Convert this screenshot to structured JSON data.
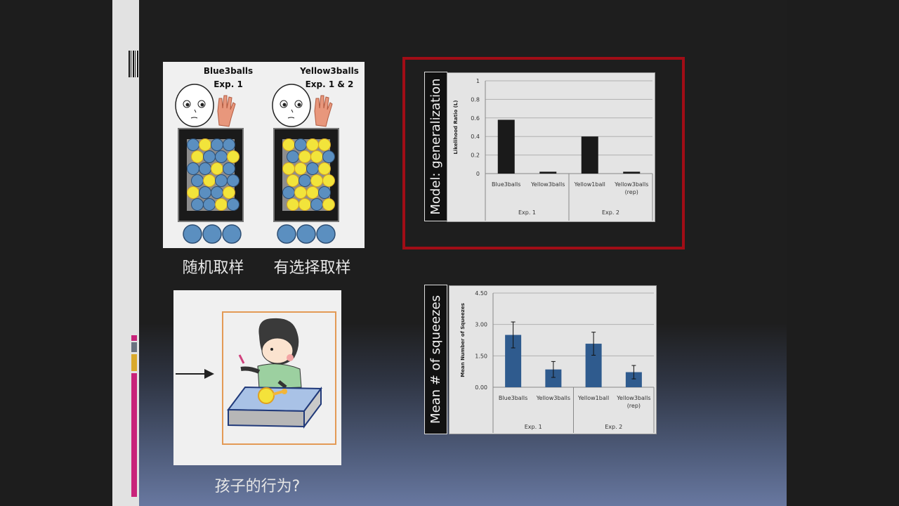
{
  "top_left": {
    "label1_line1": "Blue3balls",
    "label1_line2": "Exp. 1",
    "label2_line1": "Yellow3balls",
    "label2_line2": "Exp. 1 & 2",
    "caption1": "随机取样",
    "caption2": "有选择取样"
  },
  "bottom_left": {
    "caption": "孩子的行为?"
  },
  "chart_data": [
    {
      "type": "bar",
      "title": "Model: generalization",
      "ylabel": "Likelihood Ratio (L)",
      "ylim": [
        0,
        1
      ],
      "yticks": [
        "0",
        "0.2",
        "0.4",
        "0.6",
        "0.8",
        "1"
      ],
      "categories": [
        "Blue3balls",
        "Yellow3balls",
        "Yellow1ball",
        "Yellow3balls (rep)"
      ],
      "values": [
        0.58,
        0.02,
        0.4,
        0.02
      ],
      "groups": [
        {
          "label": "Exp. 1",
          "span": [
            0,
            1
          ]
        },
        {
          "label": "Exp. 2",
          "span": [
            2,
            3
          ]
        }
      ],
      "bar_color": "#1a1a1a"
    },
    {
      "type": "bar",
      "title": "Mean # of squeezes",
      "ylabel": "Mean Number of Squeezes",
      "ylim": [
        0,
        4.5
      ],
      "yticks": [
        "0.00",
        "1.50",
        "3.00",
        "4.50"
      ],
      "categories": [
        "Blue3balls",
        "Yellow3balls",
        "Yellow1ball",
        "Yellow3balls (rep)"
      ],
      "values": [
        2.5,
        0.85,
        2.08,
        0.72
      ],
      "errors": [
        0.62,
        0.38,
        0.55,
        0.32
      ],
      "groups": [
        {
          "label": "Exp. 1",
          "span": [
            0,
            1
          ]
        },
        {
          "label": "Exp. 2",
          "span": [
            2,
            3
          ]
        }
      ],
      "bar_color": "#2f5b8e"
    }
  ]
}
